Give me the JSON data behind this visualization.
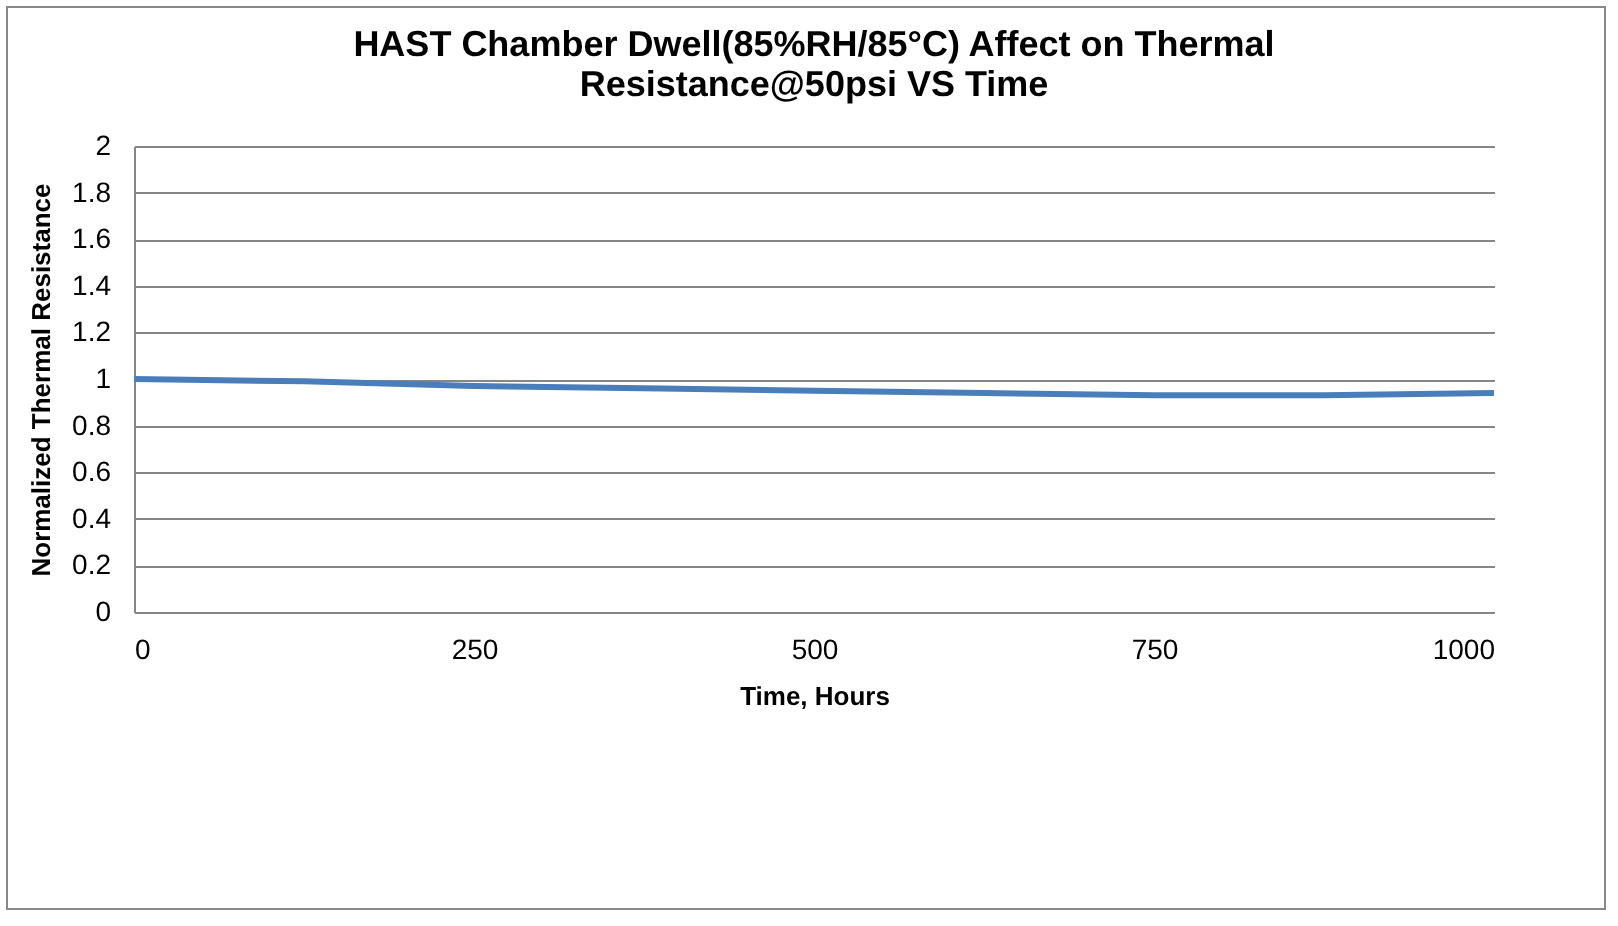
{
  "chart_data": {
    "type": "line",
    "title": [
      "HAST Chamber Dwell(85%RH/85°C) Affect on Thermal",
      "Resistance@50psi VS Time"
    ],
    "xlabel": "Time, Hours",
    "ylabel": "Normalized Thermal Resistance",
    "x": [
      0,
      125,
      250,
      375,
      500,
      625,
      750,
      875,
      1000
    ],
    "series": [
      {
        "color": "#4a7ebb",
        "values": [
          1.0,
          0.99,
          0.97,
          0.96,
          0.95,
          0.94,
          0.93,
          0.93,
          0.94
        ]
      }
    ],
    "xlim": [
      0,
      1000
    ],
    "xticks": [
      0,
      250,
      500,
      750,
      1000
    ],
    "ylim": [
      0,
      2
    ],
    "yticks": [
      0,
      0.2,
      0.4,
      0.6,
      0.8,
      1,
      1.2,
      1.4,
      1.6,
      1.8,
      2
    ],
    "grid": "y",
    "legend": false,
    "marker": "none",
    "line_style": "solid"
  }
}
